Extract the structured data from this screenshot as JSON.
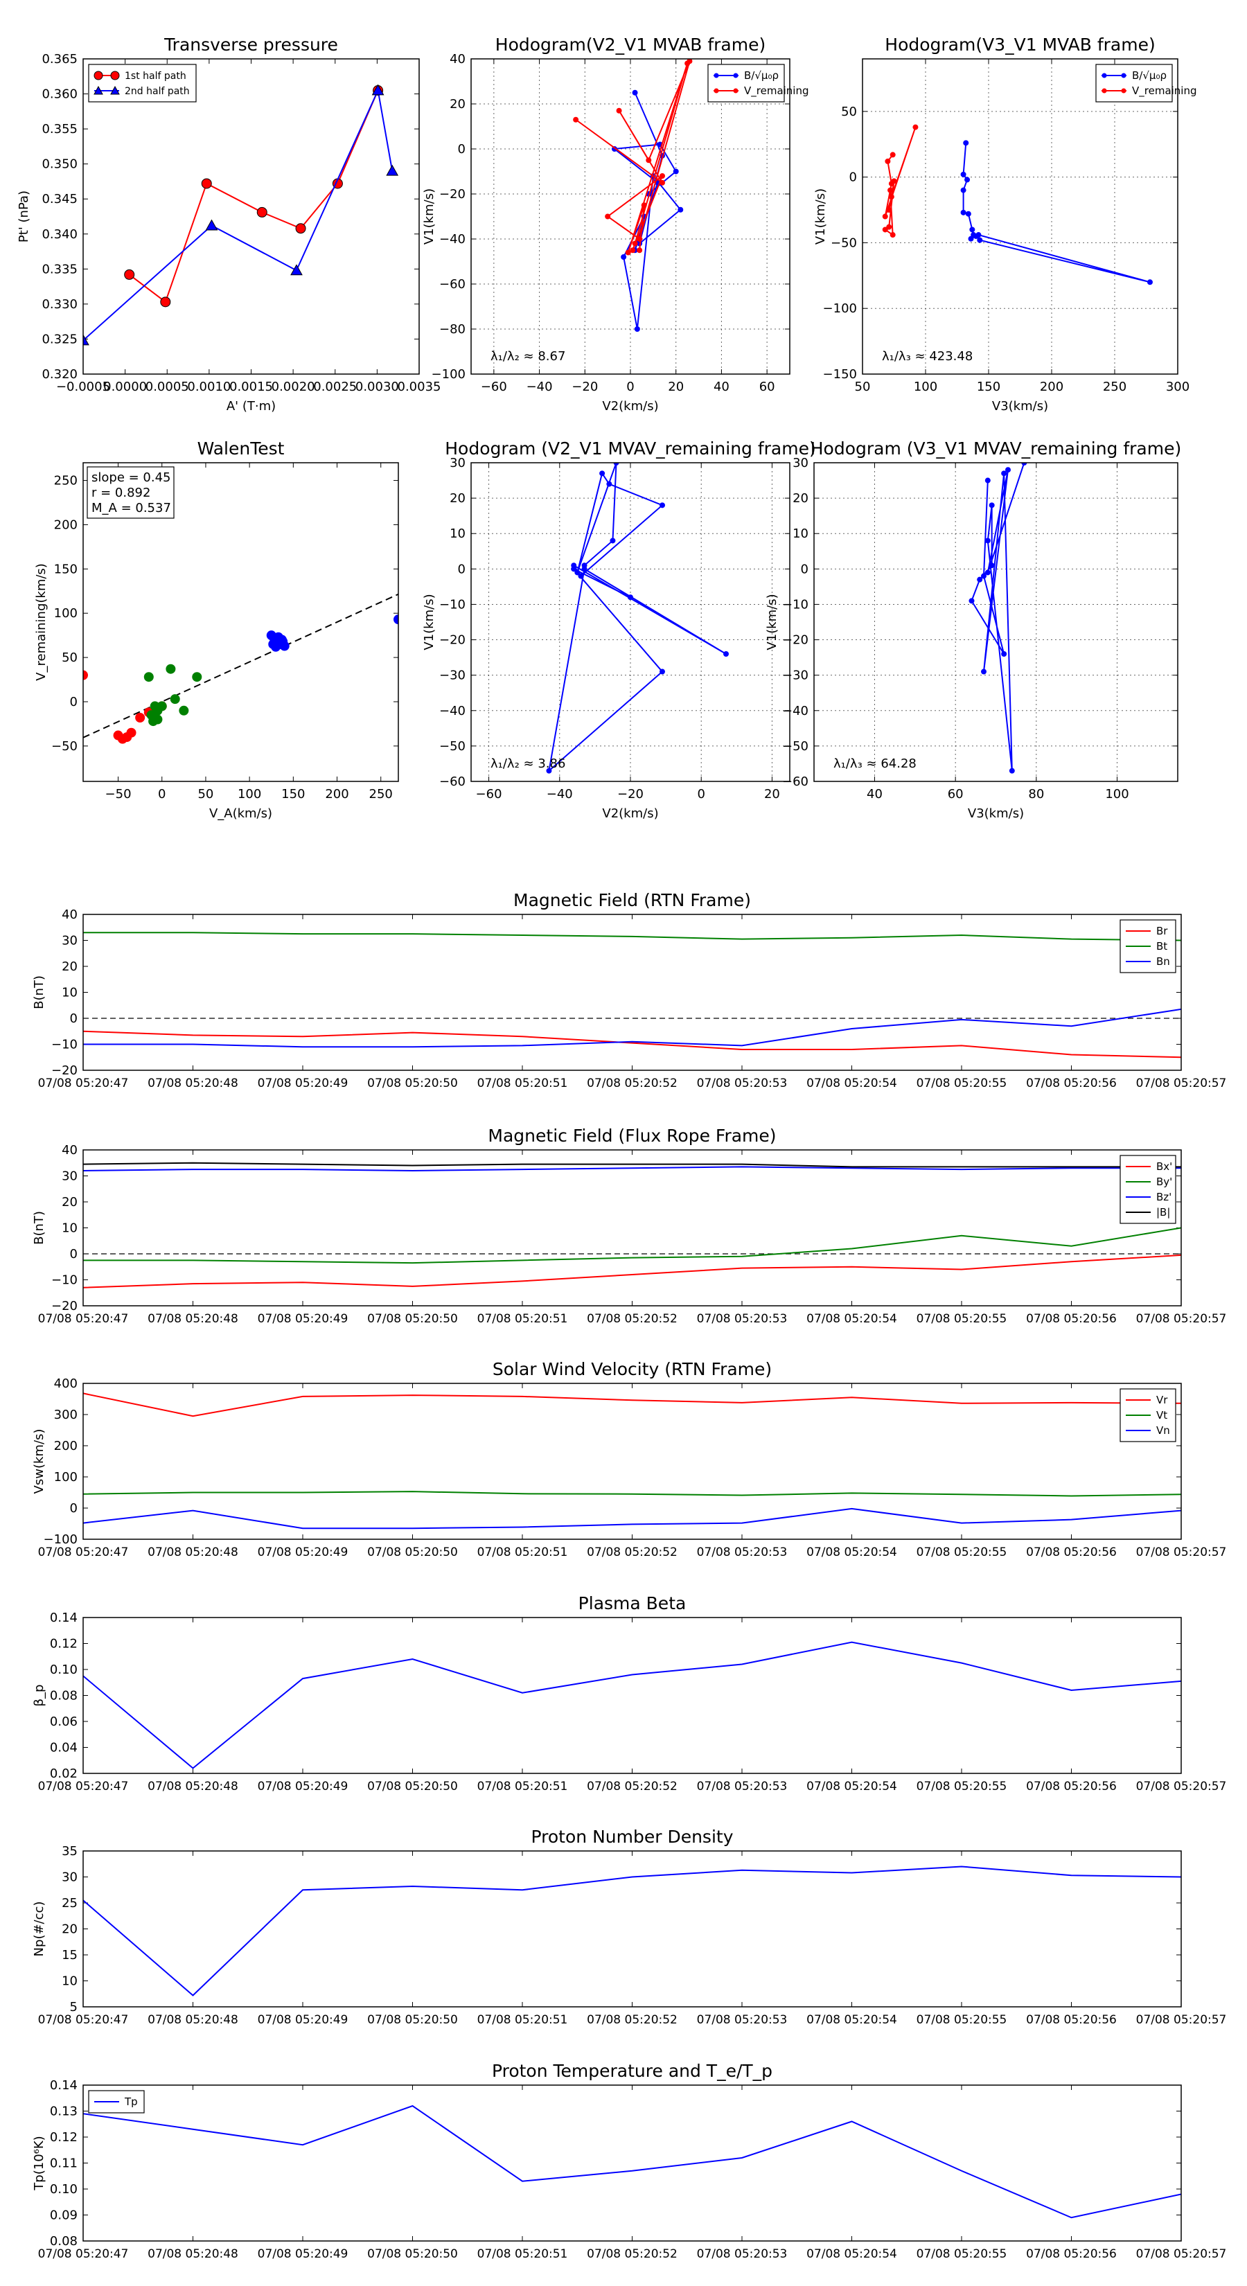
{
  "chart_data": [
    {
      "id": "pt",
      "type": "scatter",
      "title": "Transverse pressure",
      "xlabel": "A' (T·m)",
      "ylabel": "Pt' (nPa)",
      "xlim": [
        -0.0005,
        0.0035
      ],
      "ylim": [
        0.32,
        0.365
      ],
      "xticks": [
        -0.0005,
        0.0,
        0.0005,
        0.001,
        0.0015,
        0.002,
        0.0025,
        0.003,
        0.0035
      ],
      "xtick_labels": [
        "−0.0005",
        "0.0000",
        "0.0005",
        "0.0010",
        "0.0015",
        "0.0020",
        "0.0025",
        "0.0030",
        "0.0035"
      ],
      "yticks": [
        0.32,
        0.325,
        0.33,
        0.335,
        0.34,
        0.345,
        0.35,
        0.355,
        0.36,
        0.365
      ],
      "ytick_labels": [
        "0.320",
        "0.325",
        "0.330",
        "0.335",
        "0.340",
        "0.345",
        "0.350",
        "0.355",
        "0.360",
        "0.365"
      ],
      "legend": "top-left",
      "series": [
        {
          "name": "1st half path",
          "color": "#ff0000",
          "marker": "circle",
          "x": [
            5e-05,
            0.00048,
            0.00097,
            0.00163,
            0.00209,
            0.00253,
            0.00301
          ],
          "y": [
            0.3342,
            0.3303,
            0.3472,
            0.3431,
            0.3408,
            0.3472,
            0.3605
          ]
        },
        {
          "name": "2nd half path",
          "color": "#0000ff",
          "marker": "triangle",
          "x": [
            -0.0005,
            0.00103,
            0.00204,
            0.00301,
            0.00318
          ],
          "y": [
            0.3248,
            0.3412,
            0.3348,
            0.3605,
            0.349
          ]
        }
      ]
    },
    {
      "id": "h1",
      "type": "line",
      "title": "Hodogram(V2_V1 MVAB frame)",
      "xlabel": "V2(km/s)",
      "ylabel": "V1(km/s)",
      "xlim": [
        -70,
        70
      ],
      "ylim": [
        -100,
        40
      ],
      "xticks": [
        -60,
        -40,
        -20,
        0,
        20,
        40,
        60
      ],
      "yticks": [
        -100,
        -80,
        -60,
        -40,
        -20,
        0,
        20,
        40
      ],
      "grid": true,
      "legend": "top-right",
      "annotation": "λ₁/λ₂ ≈ 8.67",
      "series": [
        {
          "name": "B/√μ₀ρ",
          "color": "#0000ff",
          "x": [
            2,
            14,
            4,
            22,
            10,
            3,
            -3,
            6,
            2,
            12,
            -7,
            13,
            20,
            8
          ],
          "y": [
            25,
            -3,
            -42,
            -27,
            -12,
            -80,
            -48,
            -30,
            -45,
            -15,
            0,
            2,
            -10,
            -20
          ]
        },
        {
          "name": "V_remaining",
          "color": "#ff0000",
          "x": [
            -24,
            14,
            -5,
            8,
            26,
            4,
            -10,
            14,
            1,
            2,
            25,
            -1,
            6,
            4
          ],
          "y": [
            13,
            -15,
            17,
            -5,
            39,
            -40,
            -30,
            -12,
            -45,
            -42,
            38,
            -46,
            -25,
            -45
          ]
        }
      ]
    },
    {
      "id": "h2",
      "type": "line",
      "title": "Hodogram(V3_V1 MVAB frame)",
      "xlabel": "V3(km/s)",
      "ylabel": "V1(km/s)",
      "xlim": [
        50,
        300
      ],
      "ylim": [
        -150,
        90
      ],
      "xticks": [
        50,
        100,
        150,
        200,
        250,
        300
      ],
      "yticks": [
        -150,
        -100,
        -50,
        0,
        50
      ],
      "grid": true,
      "legend": "top-right",
      "annotation": "λ₁/λ₃ ≈ 423.48",
      "series": [
        {
          "name": "B/√μ₀ρ",
          "color": "#0000ff",
          "x": [
            132,
            130,
            133,
            130,
            130,
            134,
            137,
            138,
            136,
            142,
            278,
            143,
            140
          ],
          "y": [
            26,
            2,
            -2,
            -10,
            -27,
            -28,
            -40,
            -44,
            -47,
            -44,
            -80,
            -48,
            -45
          ]
        },
        {
          "name": "V_remaining",
          "color": "#ff0000",
          "x": [
            74,
            70,
            73,
            68,
            92,
            73,
            71,
            75,
            71,
            68,
            74,
            72
          ],
          "y": [
            17,
            12,
            -5,
            -30,
            38,
            -15,
            -25,
            -3,
            -38,
            -40,
            -44,
            -10
          ]
        }
      ]
    },
    {
      "id": "walen",
      "type": "scatter",
      "title": "WalenTest",
      "xlabel": "V_A(km/s)",
      "ylabel": "V_remaining(km/s)",
      "xlim": [
        -90,
        270
      ],
      "ylim": [
        -90,
        270
      ],
      "xticks": [
        -50,
        0,
        50,
        100,
        150,
        200,
        250
      ],
      "yticks": [
        -50,
        0,
        50,
        100,
        150,
        200,
        250
      ],
      "info_lines": [
        "slope = 0.45",
        "r = 0.892",
        "M_A = 0.537"
      ],
      "fit": {
        "slope": 0.45,
        "intercept": 0
      },
      "series": [
        {
          "name": "red",
          "color": "#ff0000",
          "x": [
            -90,
            -50,
            -45,
            -40,
            -35,
            -25,
            -15,
            -10,
            -5,
            0
          ],
          "y": [
            30,
            -38,
            -42,
            -40,
            -35,
            -18,
            -12,
            -15,
            -8,
            -5
          ]
        },
        {
          "name": "green",
          "color": "#008000",
          "x": [
            -15,
            -10,
            -5,
            -8,
            0,
            10,
            15,
            25,
            40,
            -12,
            -5
          ],
          "y": [
            28,
            -22,
            -10,
            -5,
            -5,
            37,
            3,
            -10,
            28,
            -15,
            -20
          ]
        },
        {
          "name": "blue",
          "color": "#0000ff",
          "x": [
            125,
            128,
            130,
            132,
            135,
            137,
            140,
            130,
            127,
            270,
            133,
            138
          ],
          "y": [
            75,
            72,
            70,
            68,
            65,
            70,
            63,
            62,
            65,
            93,
            73,
            68
          ]
        }
      ]
    },
    {
      "id": "h3",
      "type": "line",
      "title": "Hodogram (V2_V1 MVAV_remaining frame)",
      "xlabel": "V2(km/s)",
      "ylabel": "V1(km/s)",
      "xlim": [
        -65,
        25
      ],
      "ylim": [
        -60,
        30
      ],
      "xticks": [
        -60,
        -40,
        -20,
        0,
        20
      ],
      "yticks": [
        -60,
        -50,
        -40,
        -30,
        -20,
        -10,
        0,
        10,
        20,
        30
      ],
      "grid": true,
      "annotation": "λ₁/λ₂ ≈ 3.86",
      "series": [
        {
          "name": "V",
          "color": "#0000ff",
          "x": [
            -33,
            -25,
            -24,
            -35,
            -28,
            -26,
            -11,
            -34,
            -36,
            7,
            -33,
            -43,
            -11,
            -36,
            -20
          ],
          "y": [
            1,
            8,
            30,
            -1,
            27,
            24,
            18,
            -2,
            1,
            -24,
            0,
            -57,
            -29,
            0,
            -8
          ]
        }
      ]
    },
    {
      "id": "h4",
      "type": "line",
      "title": "Hodogram (V3_V1 MVAV_remaining frame)",
      "xlabel": "V3(km/s)",
      "ylabel": "V1(km/s)",
      "xlim": [
        25,
        115
      ],
      "ylim": [
        -60,
        30
      ],
      "xticks": [
        40,
        60,
        80,
        100
      ],
      "yticks": [
        -60,
        -50,
        -40,
        -30,
        -20,
        -10,
        0,
        10,
        20,
        30
      ],
      "grid": true,
      "annotation": "λ₁/λ₃ ≈ 64.28",
      "series": [
        {
          "name": "V",
          "color": "#0000ff",
          "x": [
            68,
            67,
            72,
            64,
            66,
            69,
            69,
            68,
            74,
            72,
            67,
            73,
            68,
            77
          ],
          "y": [
            25,
            -2,
            -24,
            -9,
            -3,
            1,
            18,
            8,
            -57,
            27,
            -29,
            28,
            -1,
            30
          ]
        }
      ]
    },
    {
      "id": "bfield",
      "type": "line",
      "title": "Magnetic Field (RTN Frame)",
      "ylabel": "B(nT)",
      "ylim": [
        -20,
        40
      ],
      "yticks": [
        -20,
        -10,
        0,
        10,
        20,
        30,
        40
      ],
      "categories": [
        "07/08 05:20:47",
        "07/08 05:20:48",
        "07/08 05:20:49",
        "07/08 05:20:50",
        "07/08 05:20:51",
        "07/08 05:20:52",
        "07/08 05:20:53",
        "07/08 05:20:54",
        "07/08 05:20:55",
        "07/08 05:20:56",
        "07/08 05:20:57"
      ],
      "zero_line": true,
      "legend": "top-right",
      "series": [
        {
          "name": "Br",
          "color": "#ff0000",
          "values": [
            -5,
            -6.5,
            -7,
            -5.5,
            -7,
            -9.5,
            -12,
            -12,
            -10.5,
            -14,
            -15
          ]
        },
        {
          "name": "Bt",
          "color": "#008000",
          "values": [
            33,
            33,
            32.5,
            32.5,
            32,
            31.5,
            30.5,
            31,
            32,
            30.5,
            30
          ]
        },
        {
          "name": "Bn",
          "color": "#0000ff",
          "values": [
            -10,
            -10,
            -11,
            -11,
            -10.5,
            -9,
            -10.5,
            -4,
            -0.5,
            -3,
            3.5
          ]
        }
      ]
    },
    {
      "id": "bflux",
      "type": "line",
      "title": "Magnetic Field (Flux Rope Frame)",
      "ylabel": "B(nT)",
      "ylim": [
        -20,
        40
      ],
      "yticks": [
        -20,
        -10,
        0,
        10,
        20,
        30,
        40
      ],
      "categories": [
        "07/08 05:20:47",
        "07/08 05:20:48",
        "07/08 05:20:49",
        "07/08 05:20:50",
        "07/08 05:20:51",
        "07/08 05:20:52",
        "07/08 05:20:53",
        "07/08 05:20:54",
        "07/08 05:20:55",
        "07/08 05:20:56",
        "07/08 05:20:57"
      ],
      "zero_line": true,
      "legend": "top-right",
      "series": [
        {
          "name": "Bx'",
          "color": "#ff0000",
          "values": [
            -13,
            -11.5,
            -11,
            -12.5,
            -10.5,
            -8,
            -5.5,
            -5,
            -6,
            -3,
            -0.5
          ]
        },
        {
          "name": "By'",
          "color": "#008000",
          "values": [
            -2.5,
            -2.5,
            -3,
            -3.5,
            -2.5,
            -1.5,
            -1,
            2,
            7,
            3,
            10
          ]
        },
        {
          "name": "Bz'",
          "color": "#0000ff",
          "values": [
            32,
            32.5,
            32.5,
            32,
            32.5,
            33,
            33.5,
            33,
            32.5,
            33,
            33
          ]
        },
        {
          "name": "|B|",
          "color": "#000000",
          "values": [
            34.5,
            35,
            34.5,
            34,
            34.5,
            34.5,
            34.5,
            33.5,
            33.5,
            33.5,
            33.5
          ]
        }
      ]
    },
    {
      "id": "vsw",
      "type": "line",
      "title": "Solar Wind Velocity (RTN Frame)",
      "ylabel": "Vsw(km/s)",
      "ylim": [
        -100,
        400
      ],
      "yticks": [
        -100,
        0,
        100,
        200,
        300,
        400
      ],
      "categories": [
        "07/08 05:20:47",
        "07/08 05:20:48",
        "07/08 05:20:49",
        "07/08 05:20:50",
        "07/08 05:20:51",
        "07/08 05:20:52",
        "07/08 05:20:53",
        "07/08 05:20:54",
        "07/08 05:20:55",
        "07/08 05:20:56",
        "07/08 05:20:57"
      ],
      "legend": "top-right",
      "series": [
        {
          "name": "Vr",
          "color": "#ff0000",
          "values": [
            368,
            295,
            358,
            362,
            358,
            346,
            338,
            355,
            336,
            338,
            336
          ]
        },
        {
          "name": "Vt",
          "color": "#008000",
          "values": [
            45,
            50,
            50,
            53,
            46,
            45,
            41,
            48,
            44,
            39,
            44
          ]
        },
        {
          "name": "Vn",
          "color": "#0000ff",
          "values": [
            -48,
            -8,
            -65,
            -65,
            -61,
            -52,
            -48,
            -2,
            -48,
            -37,
            -8
          ]
        }
      ]
    },
    {
      "id": "beta",
      "type": "line",
      "title": "Plasma Beta",
      "ylabel": "β_p",
      "ylim": [
        0.02,
        0.14
      ],
      "yticks": [
        0.02,
        0.04,
        0.06,
        0.08,
        0.1,
        0.12,
        0.14
      ],
      "ytick_labels": [
        "0.02",
        "0.04",
        "0.06",
        "0.08",
        "0.10",
        "0.12",
        "0.14"
      ],
      "categories": [
        "07/08 05:20:47",
        "07/08 05:20:48",
        "07/08 05:20:49",
        "07/08 05:20:50",
        "07/08 05:20:51",
        "07/08 05:20:52",
        "07/08 05:20:53",
        "07/08 05:20:54",
        "07/08 05:20:55",
        "07/08 05:20:56",
        "07/08 05:20:57"
      ],
      "series": [
        {
          "name": "beta",
          "color": "#0000ff",
          "values": [
            0.095,
            0.024,
            0.093,
            0.108,
            0.082,
            0.096,
            0.104,
            0.121,
            0.105,
            0.084,
            0.091
          ]
        }
      ]
    },
    {
      "id": "np",
      "type": "line",
      "title": "Proton Number Density",
      "ylabel": "Np(#/cc)",
      "ylim": [
        5,
        35
      ],
      "yticks": [
        5,
        10,
        15,
        20,
        25,
        30,
        35
      ],
      "categories": [
        "07/08 05:20:47",
        "07/08 05:20:48",
        "07/08 05:20:49",
        "07/08 05:20:50",
        "07/08 05:20:51",
        "07/08 05:20:52",
        "07/08 05:20:53",
        "07/08 05:20:54",
        "07/08 05:20:55",
        "07/08 05:20:56",
        "07/08 05:20:57"
      ],
      "series": [
        {
          "name": "Np",
          "color": "#0000ff",
          "values": [
            25.5,
            7.2,
            27.5,
            28.2,
            27.5,
            30,
            31.3,
            30.8,
            32,
            30.3,
            30
          ]
        }
      ]
    },
    {
      "id": "tp",
      "type": "line",
      "title": "Proton Temperature and T_e/T_p",
      "ylabel": "Tp(10⁶K)",
      "ylim": [
        0.08,
        0.14
      ],
      "yticks": [
        0.08,
        0.09,
        0.1,
        0.11,
        0.12,
        0.13,
        0.14
      ],
      "ytick_labels": [
        "0.08",
        "0.09",
        "0.10",
        "0.11",
        "0.12",
        "0.13",
        "0.14"
      ],
      "categories": [
        "07/08 05:20:47",
        "07/08 05:20:48",
        "07/08 05:20:49",
        "07/08 05:20:50",
        "07/08 05:20:51",
        "07/08 05:20:52",
        "07/08 05:20:53",
        "07/08 05:20:54",
        "07/08 05:20:55",
        "07/08 05:20:56",
        "07/08 05:20:57"
      ],
      "legend": "top-left",
      "series": [
        {
          "name": "Tp",
          "color": "#0000ff",
          "values": [
            0.129,
            0.123,
            0.117,
            0.132,
            0.103,
            0.107,
            0.112,
            0.126,
            0.107,
            0.089,
            0.098
          ]
        }
      ]
    }
  ]
}
